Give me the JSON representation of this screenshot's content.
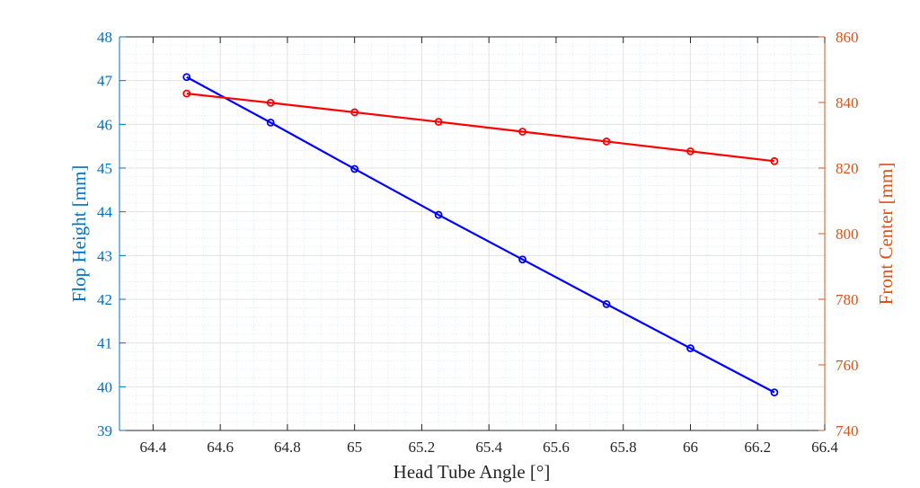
{
  "chart_data": {
    "type": "line",
    "title": "",
    "xlabel": "Head Tube Angle [°]",
    "ylabel_left": "Flop Height [mm]",
    "ylabel_right": "Front Center [mm]",
    "xlim": [
      64.3,
      66.4
    ],
    "ylim_left": [
      39,
      48
    ],
    "ylim_right": [
      740,
      860
    ],
    "xticks": [
      "64.4",
      "64.6",
      "64.8",
      "65",
      "65.2",
      "65.4",
      "65.6",
      "65.8",
      "66",
      "66.2",
      "66.4"
    ],
    "yticks_left": [
      "39",
      "40",
      "41",
      "42",
      "43",
      "44",
      "45",
      "46",
      "47",
      "48"
    ],
    "yticks_right": [
      "740",
      "760",
      "780",
      "800",
      "820",
      "840",
      "860"
    ],
    "grid": true,
    "minor_grid": true,
    "x": [
      64.5,
      64.75,
      65.0,
      65.25,
      65.5,
      65.75,
      66.0,
      66.25
    ],
    "series": [
      {
        "name": "Flop Height",
        "axis": "left",
        "color": "#0000ff",
        "marker": "circle",
        "values": [
          47.08,
          46.04,
          44.98,
          43.93,
          42.91,
          41.89,
          40.88,
          39.87
        ]
      },
      {
        "name": "Front Center",
        "axis": "right",
        "color": "#ff0000",
        "marker": "circle",
        "values": [
          842.7,
          839.9,
          837.0,
          834.1,
          831.1,
          828.1,
          825.1,
          822.1
        ]
      }
    ],
    "axis_colors": {
      "left": "#0072bd",
      "right": "#d95319",
      "x": "#262626"
    }
  }
}
